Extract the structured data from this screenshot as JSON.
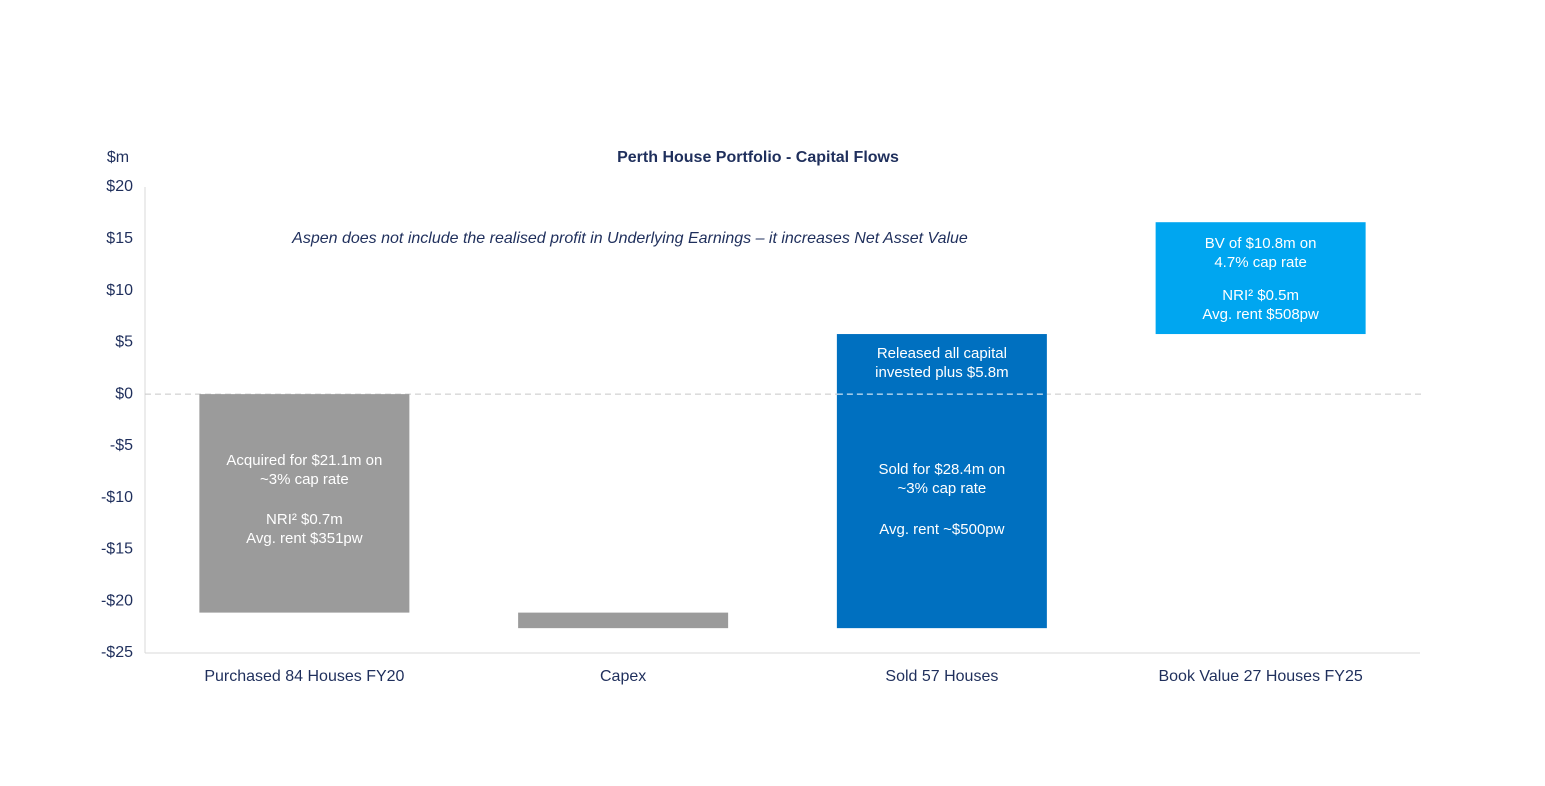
{
  "chart_data": {
    "type": "waterfall",
    "title": "Perth House Portfolio - Capital Flows",
    "y_label": "$m",
    "annotation": "Aspen does not include the realised profit in Underlying Earnings – it increases Net Asset Value",
    "categories": [
      "Purchased 84 Houses FY20",
      "Capex",
      "Sold 57 Houses",
      "Book Value 27 Houses FY25"
    ],
    "values": [
      -21.1,
      -1.5,
      28.4,
      10.8
    ],
    "colors": [
      "#9b9b9b",
      "#9b9b9b",
      "#0070c0",
      "#00a6f0"
    ],
    "bar_labels": [
      [
        [
          "Acquired for $21.1m on",
          "~3% cap rate"
        ],
        [
          "NRI² $0.7m",
          "Avg. rent $351pw"
        ]
      ],
      [],
      [
        [
          "Released all capital",
          "invested plus $5.8m"
        ],
        [
          "Sold for $28.4m on",
          "~3% cap rate"
        ],
        [
          "Avg. rent ~$500pw"
        ]
      ],
      [
        [
          "BV of $10.8m on",
          "4.7% cap rate"
        ],
        [
          "NRI² $0.5m",
          "Avg. rent $508pw"
        ]
      ]
    ],
    "ylim": [
      -25,
      20
    ],
    "yticks": [
      {
        "value": -25,
        "label": "-$25"
      },
      {
        "value": -20,
        "label": "-$20"
      },
      {
        "value": -15,
        "label": "-$15"
      },
      {
        "value": -10,
        "label": "-$10"
      },
      {
        "value": -5,
        "label": "-$5"
      },
      {
        "value": 0,
        "label": "$0"
      },
      {
        "value": 5,
        "label": "$5"
      },
      {
        "value": 10,
        "label": "$10"
      },
      {
        "value": 15,
        "label": "$15"
      },
      {
        "value": 20,
        "label": "$20"
      }
    ],
    "zero_line": "dashed"
  }
}
